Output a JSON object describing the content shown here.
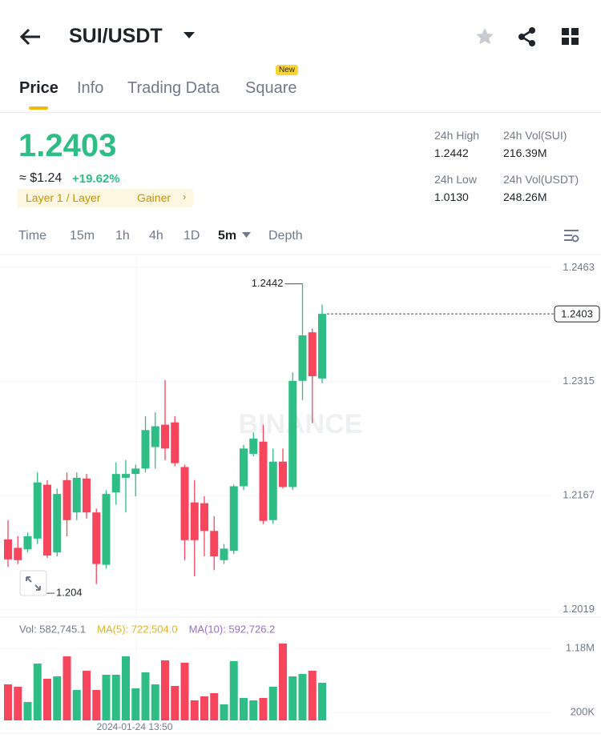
{
  "header": {
    "pair": "SUI/USDT"
  },
  "tabs": {
    "items": [
      "Price",
      "Info",
      "Trading Data",
      "Square"
    ],
    "badge": "New"
  },
  "ticker": {
    "price": "1.2403",
    "approx": "≈ $1.24",
    "change": "+19.62%",
    "tags": [
      "Layer 1 / Layer",
      "Gainer"
    ],
    "stats": [
      {
        "label": "24h High",
        "value": "1.2442"
      },
      {
        "label": "24h Vol(SUI)",
        "value": "216.39M"
      },
      {
        "label": "24h Low",
        "value": "1.0130"
      },
      {
        "label": "24h Vol(USDT)",
        "value": "248.26M"
      }
    ]
  },
  "intervals": [
    "Time",
    "15m",
    "1h",
    "4h",
    "1D",
    "5m",
    "Depth"
  ],
  "chart_data": {
    "type": "candlestick",
    "watermark": "BINANCE",
    "x_label": "2024-01-24 13:50",
    "up_color": "#2ebd85",
    "down_color": "#f6465d",
    "open": [
      1.211,
      1.2099,
      1.2097,
      1.2111,
      1.2181,
      1.2093,
      1.2187,
      1.2145,
      1.2189,
      1.2145,
      1.2077,
      1.2171,
      1.219,
      1.2195,
      1.2202,
      1.223,
      1.2259,
      1.2262,
      1.2204,
      1.2158,
      1.2157,
      1.2121,
      1.2083,
      1.2095,
      1.2179,
      1.2221,
      1.2237,
      1.2135,
      1.2211,
      1.2178,
      1.2316,
      1.2379,
      1.2319
    ],
    "high": [
      1.2135,
      1.2114,
      1.2119,
      1.2197,
      1.2187,
      1.2176,
      1.2197,
      1.2197,
      1.2195,
      1.215,
      1.2174,
      1.221,
      1.2213,
      1.2207,
      1.227,
      1.2275,
      1.2317,
      1.227,
      1.2207,
      1.2187,
      1.2166,
      1.214,
      1.2104,
      1.2181,
      1.2233,
      1.2249,
      1.2259,
      1.2228,
      1.2228,
      1.2327,
      1.2442,
      1.2384,
      1.2415
    ],
    "low": [
      1.2074,
      1.2078,
      1.2093,
      1.2104,
      1.2086,
      1.2088,
      1.2114,
      1.2135,
      1.2137,
      1.2052,
      1.2072,
      1.2155,
      1.2145,
      1.2166,
      1.2197,
      1.2202,
      1.2213,
      1.2205,
      1.2083,
      1.2062,
      1.2088,
      1.207,
      1.2078,
      1.2091,
      1.2174,
      1.2218,
      1.213,
      1.213,
      1.2176,
      1.2174,
      1.2291,
      1.2261,
      1.2313
    ],
    "close": [
      1.2084,
      1.2083,
      1.2114,
      1.2184,
      1.2089,
      1.2169,
      1.2135,
      1.219,
      1.2145,
      1.2078,
      1.2169,
      1.2195,
      1.2195,
      1.2202,
      1.2252,
      1.2257,
      1.2228,
      1.2209,
      1.2109,
      1.2109,
      1.2121,
      1.2088,
      1.2098,
      1.2179,
      1.2228,
      1.2241,
      1.2134,
      1.2211,
      1.2178,
      1.2316,
      1.2375,
      1.2322,
      1.2403
    ],
    "ylim": [
      1.201,
      1.2478
    ],
    "yticks": [
      1.2463,
      1.2315,
      1.2167,
      1.2019
    ],
    "current_price": 1.2403,
    "high_marker": 1.2442,
    "low_marker": 1.204,
    "volume": {
      "values": [
        629000,
        592000,
        359000,
        947000,
        715000,
        751000,
        1058000,
        543000,
        837000,
        543000,
        776000,
        776000,
        1058000,
        568000,
        813000,
        629000,
        996000,
        604000,
        960000,
        384000,
        445000,
        494000,
        323000,
        984000,
        421000,
        384000,
        421000,
        592000,
        1254000,
        751000,
        788000,
        837000,
        653000
      ],
      "ylim": [
        77500,
        1302500
      ],
      "yticks": [
        {
          "value": 1180000,
          "label": "1.18M"
        },
        {
          "value": 200000,
          "label": "200K"
        }
      ],
      "legend": [
        {
          "text": "Vol: 582,745.1",
          "color": "#707a8a"
        },
        {
          "text": "MA(5): 722,504.0",
          "color": "#e0b428"
        },
        {
          "text": "MA(10): 592,726.2",
          "color": "#9b6fc4"
        }
      ]
    }
  }
}
